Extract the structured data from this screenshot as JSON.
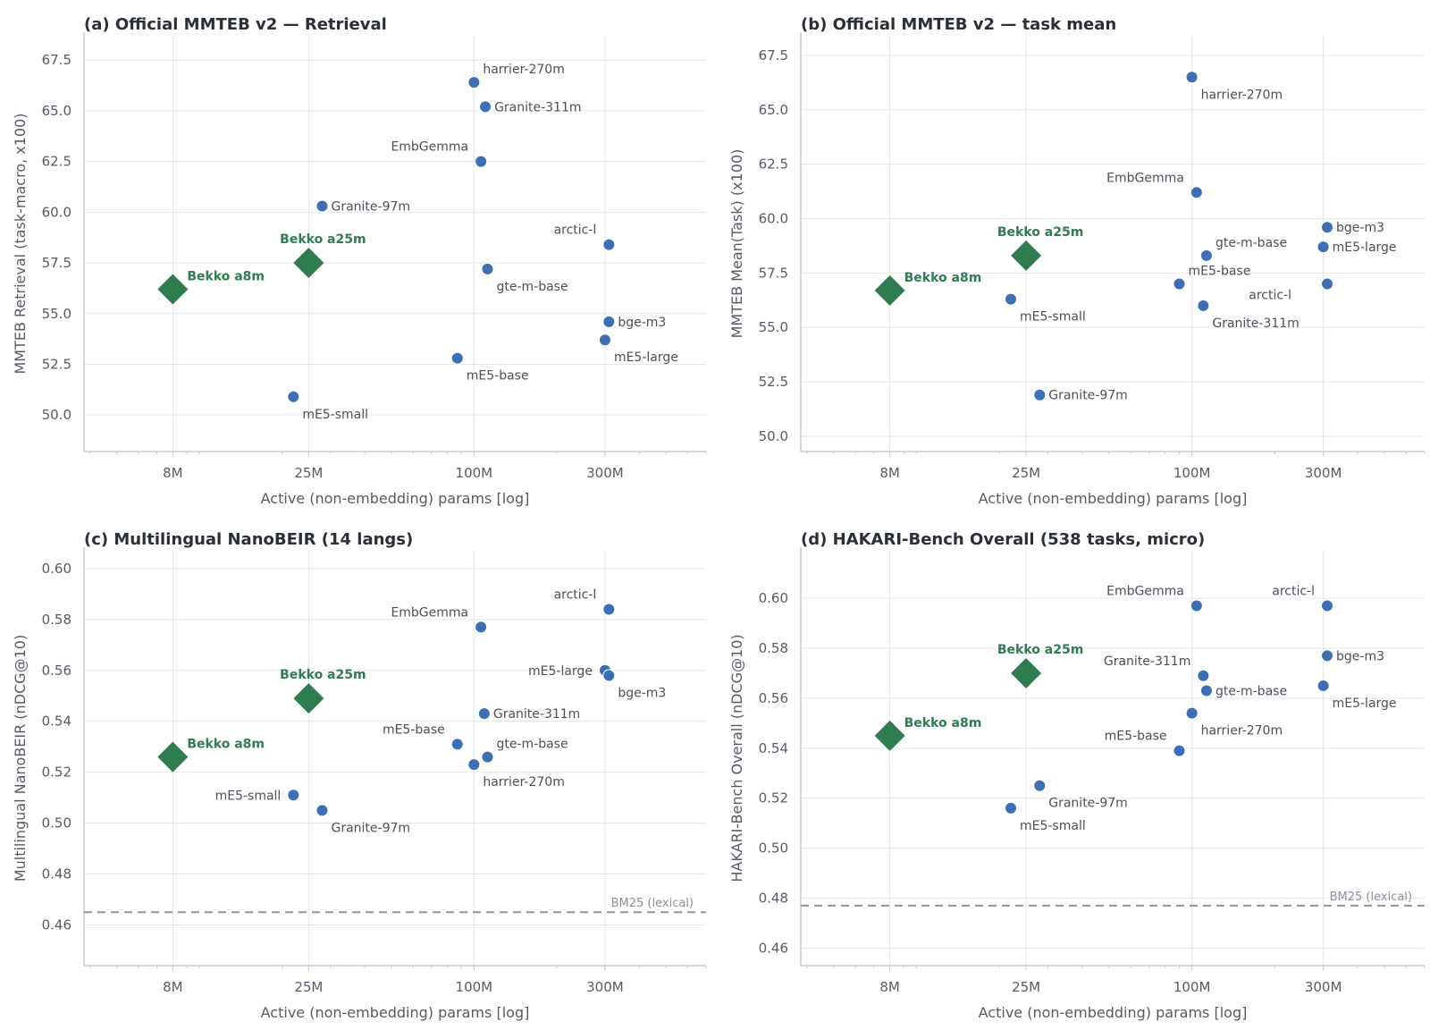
{
  "colors": {
    "model": "#3b6fb6",
    "highlight": "#2e7d4f",
    "reference_line": "#8f939c"
  },
  "chart_data": [
    {
      "type": "scatter",
      "title": "(a) Official MMTEB v2 — Retrieval",
      "xlabel": "Active (non-embedding) params [log]",
      "ylabel": "MMTEB Retrieval (task-macro, x100)",
      "xscale": "log",
      "xlim": [
        3.8,
        700
      ],
      "ylim": [
        48.2,
        68.7
      ],
      "xticks": [
        {
          "value": 8,
          "label": "8M"
        },
        {
          "value": 25,
          "label": "25M"
        },
        {
          "value": 100,
          "label": "100M"
        },
        {
          "value": 300,
          "label": "300M"
        }
      ],
      "yticks": [
        {
          "value": 50.0,
          "label": "50.0"
        },
        {
          "value": 52.5,
          "label": "52.5"
        },
        {
          "value": 55.0,
          "label": "55.0"
        },
        {
          "value": 57.5,
          "label": "57.5"
        },
        {
          "value": 60.0,
          "label": "60.0"
        },
        {
          "value": 62.5,
          "label": "62.5"
        },
        {
          "value": 65.0,
          "label": "65.0"
        },
        {
          "value": 67.5,
          "label": "67.5"
        }
      ],
      "grid": true,
      "points": [
        {
          "name": "Bekko a8m",
          "x": 8,
          "y": 56.2,
          "highlight": true,
          "label_pos": "above-right"
        },
        {
          "name": "Bekko a25m",
          "x": 25,
          "y": 57.5,
          "highlight": true,
          "label_pos": "above"
        },
        {
          "name": "mE5-small",
          "x": 22,
          "y": 50.9,
          "label_pos": "below-right"
        },
        {
          "name": "Granite-97m",
          "x": 28,
          "y": 60.3,
          "label_pos": "right"
        },
        {
          "name": "harrier-270m",
          "x": 100,
          "y": 66.4,
          "label_pos": "above-right"
        },
        {
          "name": "Granite-311m",
          "x": 110,
          "y": 65.2,
          "label_pos": "right"
        },
        {
          "name": "EmbGemma",
          "x": 106,
          "y": 62.5,
          "label_pos": "above-left"
        },
        {
          "name": "gte-m-base",
          "x": 112,
          "y": 57.2,
          "label_pos": "below-right"
        },
        {
          "name": "mE5-base",
          "x": 87,
          "y": 52.8,
          "label_pos": "below-right"
        },
        {
          "name": "arctic-l",
          "x": 310,
          "y": 58.4,
          "label_pos": "above-left"
        },
        {
          "name": "bge-m3",
          "x": 310,
          "y": 54.6,
          "label_pos": "right"
        },
        {
          "name": "mE5-large",
          "x": 300,
          "y": 53.7,
          "label_pos": "below-right"
        }
      ]
    },
    {
      "type": "scatter",
      "title": "(b) Official MMTEB v2 — task mean",
      "xlabel": "Active (non-embedding) params [log]",
      "ylabel": "MMTEB Mean(Task) (x100)",
      "xscale": "log",
      "xlim": [
        3.8,
        700
      ],
      "ylim": [
        49.3,
        68.4
      ],
      "xticks": [
        {
          "value": 8,
          "label": "8M"
        },
        {
          "value": 25,
          "label": "25M"
        },
        {
          "value": 100,
          "label": "100M"
        },
        {
          "value": 300,
          "label": "300M"
        }
      ],
      "yticks": [
        {
          "value": 50.0,
          "label": "50.0"
        },
        {
          "value": 52.5,
          "label": "52.5"
        },
        {
          "value": 55.0,
          "label": "55.0"
        },
        {
          "value": 57.5,
          "label": "57.5"
        },
        {
          "value": 60.0,
          "label": "60.0"
        },
        {
          "value": 62.5,
          "label": "62.5"
        },
        {
          "value": 65.0,
          "label": "65.0"
        },
        {
          "value": 67.5,
          "label": "67.5"
        }
      ],
      "grid": true,
      "points": [
        {
          "name": "Bekko a8m",
          "x": 8,
          "y": 56.7,
          "highlight": true,
          "label_pos": "above-right"
        },
        {
          "name": "Bekko a25m",
          "x": 25,
          "y": 58.3,
          "highlight": true,
          "label_pos": "above"
        },
        {
          "name": "mE5-small",
          "x": 22,
          "y": 56.3,
          "label_pos": "below-right"
        },
        {
          "name": "Granite-97m",
          "x": 28,
          "y": 51.9,
          "label_pos": "right"
        },
        {
          "name": "harrier-270m",
          "x": 100,
          "y": 66.5,
          "label_pos": "below-right"
        },
        {
          "name": "EmbGemma",
          "x": 104,
          "y": 61.2,
          "label_pos": "above-left"
        },
        {
          "name": "gte-m-base",
          "x": 113,
          "y": 58.3,
          "label_pos": "above-right"
        },
        {
          "name": "mE5-base",
          "x": 90,
          "y": 57.0,
          "label_pos": "above-right"
        },
        {
          "name": "Granite-311m",
          "x": 110,
          "y": 56.0,
          "label_pos": "below-right"
        },
        {
          "name": "bge-m3",
          "x": 310,
          "y": 59.6,
          "label_pos": "right"
        },
        {
          "name": "mE5-large",
          "x": 300,
          "y": 58.7,
          "label_pos": "right"
        },
        {
          "name": "arctic-l",
          "x": 310,
          "y": 57.0,
          "label_pos": "below-left"
        }
      ]
    },
    {
      "type": "scatter",
      "title": "(c) Multilingual NanoBEIR (14 langs)",
      "xlabel": "Active (non-embedding) params [log]",
      "ylabel": "Multilingual NanoBEIR (nDCG@10)",
      "xscale": "log",
      "xlim": [
        3.8,
        700
      ],
      "ylim": [
        0.444,
        0.607
      ],
      "xticks": [
        {
          "value": 8,
          "label": "8M"
        },
        {
          "value": 25,
          "label": "25M"
        },
        {
          "value": 100,
          "label": "100M"
        },
        {
          "value": 300,
          "label": "300M"
        }
      ],
      "yticks": [
        {
          "value": 0.46,
          "label": "0.46"
        },
        {
          "value": 0.48,
          "label": "0.48"
        },
        {
          "value": 0.5,
          "label": "0.50"
        },
        {
          "value": 0.52,
          "label": "0.52"
        },
        {
          "value": 0.54,
          "label": "0.54"
        },
        {
          "value": 0.56,
          "label": "0.56"
        },
        {
          "value": 0.58,
          "label": "0.58"
        },
        {
          "value": 0.6,
          "label": "0.60"
        }
      ],
      "grid": true,
      "reference_line": {
        "label": "BM25 (lexical)",
        "y": 0.465
      },
      "points": [
        {
          "name": "Bekko a8m",
          "x": 8,
          "y": 0.526,
          "highlight": true,
          "label_pos": "above-right"
        },
        {
          "name": "Bekko a25m",
          "x": 25,
          "y": 0.549,
          "highlight": true,
          "label_pos": "above"
        },
        {
          "name": "mE5-small",
          "x": 22,
          "y": 0.511,
          "label_pos": "left"
        },
        {
          "name": "Granite-97m",
          "x": 28,
          "y": 0.505,
          "label_pos": "below-right"
        },
        {
          "name": "EmbGemma",
          "x": 106,
          "y": 0.577,
          "label_pos": "above-left"
        },
        {
          "name": "Granite-311m",
          "x": 109,
          "y": 0.543,
          "label_pos": "right"
        },
        {
          "name": "mE5-base",
          "x": 87,
          "y": 0.531,
          "label_pos": "above-left"
        },
        {
          "name": "gte-m-base",
          "x": 112,
          "y": 0.526,
          "label_pos": "above-right"
        },
        {
          "name": "harrier-270m",
          "x": 100,
          "y": 0.523,
          "label_pos": "below-right"
        },
        {
          "name": "arctic-l",
          "x": 310,
          "y": 0.584,
          "label_pos": "above-left"
        },
        {
          "name": "mE5-large",
          "x": 300,
          "y": 0.56,
          "label_pos": "left"
        },
        {
          "name": "bge-m3",
          "x": 310,
          "y": 0.558,
          "label_pos": "below-right"
        }
      ]
    },
    {
      "type": "scatter",
      "title": "(d) HAKARI-Bench Overall (538 tasks, micro)",
      "xlabel": "Active (non-embedding) params [log]",
      "ylabel": "HAKARI-Bench Overall (nDCG@10)",
      "xscale": "log",
      "xlim": [
        3.8,
        700
      ],
      "ylim": [
        0.453,
        0.619
      ],
      "xticks": [
        {
          "value": 8,
          "label": "8M"
        },
        {
          "value": 25,
          "label": "25M"
        },
        {
          "value": 100,
          "label": "100M"
        },
        {
          "value": 300,
          "label": "300M"
        }
      ],
      "yticks": [
        {
          "value": 0.46,
          "label": "0.46"
        },
        {
          "value": 0.48,
          "label": "0.48"
        },
        {
          "value": 0.5,
          "label": "0.50"
        },
        {
          "value": 0.52,
          "label": "0.52"
        },
        {
          "value": 0.54,
          "label": "0.54"
        },
        {
          "value": 0.56,
          "label": "0.56"
        },
        {
          "value": 0.58,
          "label": "0.58"
        },
        {
          "value": 0.6,
          "label": "0.60"
        }
      ],
      "grid": true,
      "reference_line": {
        "label": "BM25 (lexical)",
        "y": 0.477
      },
      "points": [
        {
          "name": "Bekko a8m",
          "x": 8,
          "y": 0.545,
          "highlight": true,
          "label_pos": "above-right"
        },
        {
          "name": "Bekko a25m",
          "x": 25,
          "y": 0.57,
          "highlight": true,
          "label_pos": "above"
        },
        {
          "name": "mE5-small",
          "x": 22,
          "y": 0.516,
          "label_pos": "below-right"
        },
        {
          "name": "Granite-97m",
          "x": 28,
          "y": 0.525,
          "label_pos": "below-right"
        },
        {
          "name": "EmbGemma",
          "x": 104,
          "y": 0.597,
          "label_pos": "above-left"
        },
        {
          "name": "Granite-311m",
          "x": 110,
          "y": 0.569,
          "label_pos": "above-left"
        },
        {
          "name": "gte-m-base",
          "x": 113,
          "y": 0.563,
          "label_pos": "right"
        },
        {
          "name": "harrier-270m",
          "x": 100,
          "y": 0.554,
          "label_pos": "below-right"
        },
        {
          "name": "mE5-base",
          "x": 90,
          "y": 0.539,
          "label_pos": "above-left"
        },
        {
          "name": "arctic-l",
          "x": 310,
          "y": 0.597,
          "label_pos": "above-left"
        },
        {
          "name": "bge-m3",
          "x": 310,
          "y": 0.577,
          "label_pos": "right"
        },
        {
          "name": "mE5-large",
          "x": 300,
          "y": 0.565,
          "label_pos": "below-right"
        }
      ]
    }
  ]
}
